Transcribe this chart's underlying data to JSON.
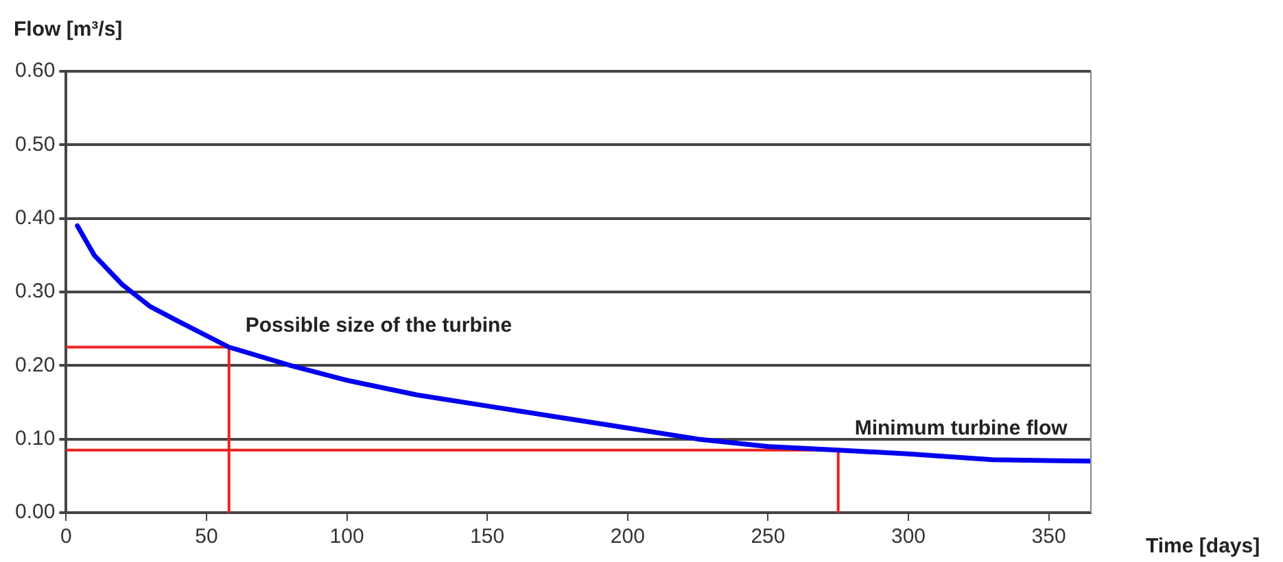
{
  "chart_data": {
    "type": "line",
    "xlabel": "Time [days]",
    "ylabel": "Flow [m³/s]",
    "xlim": [
      0,
      365
    ],
    "xticks": [
      0,
      50,
      100,
      150,
      200,
      250,
      300,
      350
    ],
    "ylim": [
      0,
      0.6
    ],
    "yticks": [
      {
        "value": 0,
        "label": "0.00"
      },
      {
        "value": 0.1,
        "label": "0.10"
      },
      {
        "value": 0.2,
        "label": "0.20"
      },
      {
        "value": 0.3,
        "label": "0.30"
      },
      {
        "value": 0.4,
        "label": "0.40"
      },
      {
        "value": 0.5,
        "label": "0.50"
      },
      {
        "value": 0.6,
        "label": "0.60"
      }
    ],
    "grid": "y",
    "marker": "none",
    "line_style": "solid",
    "series": [
      {
        "color": "#0000ee",
        "x": [
          4,
          10,
          20,
          30,
          40,
          58,
          80,
          100,
          125,
          150,
          175,
          200,
          225,
          250,
          275,
          300,
          330,
          365
        ],
        "values": [
          0.39,
          0.35,
          0.31,
          0.28,
          0.26,
          0.225,
          0.2,
          0.18,
          0.16,
          0.145,
          0.13,
          0.115,
          0.1,
          0.09,
          0.085,
          0.08,
          0.072,
          0.07
        ]
      },
      {
        "color": "#ee2222",
        "x": [
          0,
          58,
          58
        ],
        "values": [
          0.225,
          0.225,
          0
        ]
      },
      {
        "color": "#ee2222",
        "x": [
          0,
          275,
          275
        ],
        "values": [
          0.085,
          0.085,
          0
        ]
      }
    ],
    "annotations": [
      {
        "text": "Possible size of the turbine",
        "x": 58,
        "y": 0.225
      },
      {
        "text": "Minimum turbine flow",
        "x": 275,
        "y": 0.085
      }
    ]
  }
}
